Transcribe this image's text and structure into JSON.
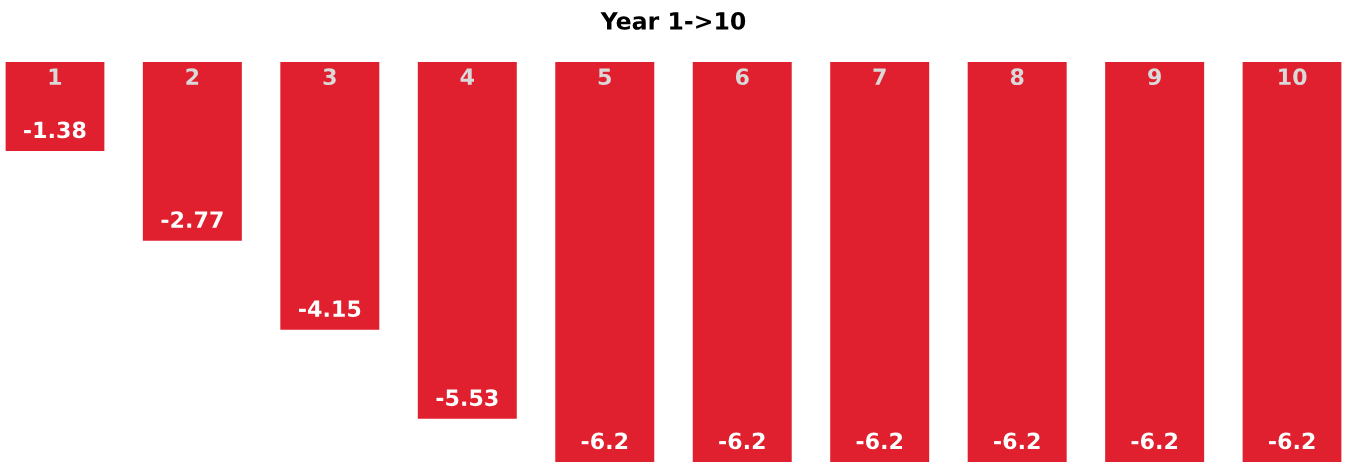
{
  "chart_data": {
    "type": "bar",
    "title": "Year 1->10",
    "categories": [
      "1",
      "2",
      "3",
      "4",
      "5",
      "6",
      "7",
      "8",
      "9",
      "10"
    ],
    "values": [
      -1.38,
      -2.77,
      -4.15,
      -5.53,
      -6.2,
      -6.2,
      -6.2,
      -6.2,
      -6.2,
      -6.2
    ],
    "color": "#e0202e",
    "data_labels": true,
    "tick_labels": false
  }
}
